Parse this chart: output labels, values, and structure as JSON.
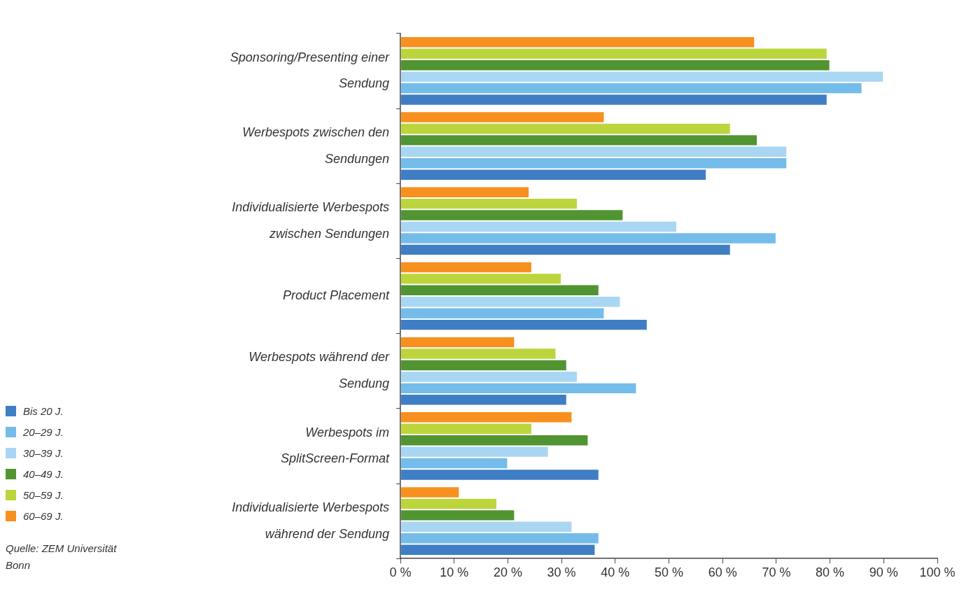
{
  "chart_data": {
    "type": "bar",
    "orientation": "horizontal",
    "categories": [
      "Sponsoring/Presenting einer Sendung",
      "Werbespots zwischen den Sendungen",
      "Individualisierte Werbespots zwischen Sendungen",
      "Product Placement",
      "Werbespots während der Sendung",
      "Werbespots im SplitScreen-Format",
      "Individualisierte Werbespots während der Sendung"
    ],
    "series": [
      {
        "name": "Bis 20 J.",
        "color": "#3f7ec4",
        "values": [
          79.5,
          57,
          61.5,
          46,
          31,
          37,
          36.3
        ]
      },
      {
        "name": "20–29 J.",
        "color": "#74bce9",
        "values": [
          86,
          72,
          70,
          38,
          44,
          20,
          37
        ]
      },
      {
        "name": "30–39 J.",
        "color": "#a9d6f2",
        "values": [
          90,
          72,
          51.5,
          41,
          33,
          27.6,
          32
        ]
      },
      {
        "name": "40–49 J.",
        "color": "#519432",
        "values": [
          80,
          66.5,
          41.5,
          37,
          31,
          35,
          21.3
        ]
      },
      {
        "name": "50–59 J.",
        "color": "#bcd53c",
        "values": [
          79.5,
          61.5,
          33,
          30,
          29,
          24.5,
          18
        ]
      },
      {
        "name": "60–69 J.",
        "color": "#f7901e",
        "values": [
          66,
          38,
          24,
          24.5,
          21.3,
          32,
          11
        ]
      }
    ],
    "xlim": [
      0,
      100
    ],
    "xticks": [
      {
        "value": 0,
        "label": "0 %"
      },
      {
        "value": 10,
        "label": "10 %"
      },
      {
        "value": 20,
        "label": "20 %"
      },
      {
        "value": 30,
        "label": "30 %"
      },
      {
        "value": 40,
        "label": "40 %"
      },
      {
        "value": 50,
        "label": "50 %"
      },
      {
        "value": 60,
        "label": "60 %"
      },
      {
        "value": 70,
        "label": "70 %"
      },
      {
        "value": 80,
        "label": "80 %"
      },
      {
        "value": 90,
        "label": "90 %"
      },
      {
        "value": 100,
        "label": "100 %"
      }
    ],
    "grid": false,
    "legend": "bottom left",
    "annotations": [
      "Quelle: ZEM Universität Bonn"
    ]
  }
}
